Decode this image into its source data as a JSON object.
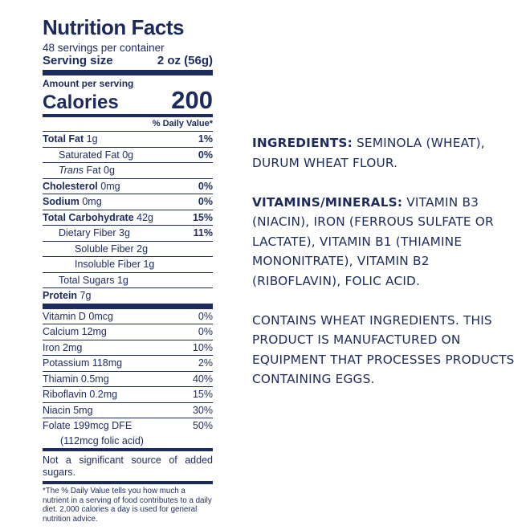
{
  "label": {
    "title": "Nutrition Facts",
    "servings_per_container": "48 servings per container",
    "serving_size_label": "Serving size",
    "serving_size_value": "2 oz (56g)",
    "amount_per_serving": "Amount per serving",
    "calories_label": "Calories",
    "calories_value": "200",
    "daily_value_header": "% Daily Value*",
    "nutrients": [
      {
        "name": "Total Fat",
        "amount": "1g",
        "dv": "1%"
      },
      {
        "name": "Saturated Fat",
        "amount": "0g",
        "dv": "0%"
      },
      {
        "name": "Trans",
        "amount": "Fat 0g",
        "dv": ""
      },
      {
        "name": "Cholesterol",
        "amount": "0mg",
        "dv": "0%"
      },
      {
        "name": "Sodium",
        "amount": "0mg",
        "dv": "0%"
      },
      {
        "name": "Total Carbohydrate",
        "amount": "42g",
        "dv": "15%"
      },
      {
        "name": "Dietary Fiber",
        "amount": "3g",
        "dv": "11%"
      },
      {
        "name": "Soluble Fiber",
        "amount": "2g",
        "dv": ""
      },
      {
        "name": "Insoluble Fiber",
        "amount": "1g",
        "dv": ""
      },
      {
        "name": "Total Sugars",
        "amount": "1g",
        "dv": ""
      },
      {
        "name": "Protein",
        "amount": "7g",
        "dv": ""
      }
    ],
    "vitamins": [
      {
        "name": "Vitamin D 0mcg",
        "dv": "0%"
      },
      {
        "name": "Calcium 12mg",
        "dv": "0%"
      },
      {
        "name": "Iron 2mg",
        "dv": "10%"
      },
      {
        "name": "Potassium 118mg",
        "dv": "2%"
      },
      {
        "name": "Thiamin 0.5mg",
        "dv": "40%"
      },
      {
        "name": "Riboflavin 0.2mg",
        "dv": "15%"
      },
      {
        "name": "Niacin 5mg",
        "dv": "30%"
      },
      {
        "name": "Folate 199mcg DFE",
        "dv": "50%"
      }
    ],
    "folic_acid": "(112mcg folic acid)",
    "not_significant": "Not a significant source of added sugars.",
    "footnote": "*The % Daily Value tells you how much a nutrient in a serving of food contributes to a daily diet. 2,000 calories a day is used for general nutrition advice."
  },
  "ingredients": {
    "heading": "INGREDIENTS:",
    "text": "SEMINOLA (WHEAT), DURUM WHEAT FLOUR."
  },
  "vitamins_minerals": {
    "heading": "VITAMINS/MINERALS:",
    "text": "VITAMIN B3 (NIACIN), IRON (FERROUS SULFATE OR LACTATE), VITAMIN B1 (THIAMINE MONONITRATE), VITAMIN B2 (RIBOFLAVIN), FOLIC ACID."
  },
  "allergen": {
    "text": "CONTAINS WHEAT INGREDIENTS. THIS PRODUCT IS MANUFACTURED ON EQUIPMENT THAT PROCESSES PRODUCTS CONTAINING EGGS."
  },
  "colors": {
    "ink": "#1c2a5c",
    "background": "#ffffff"
  }
}
